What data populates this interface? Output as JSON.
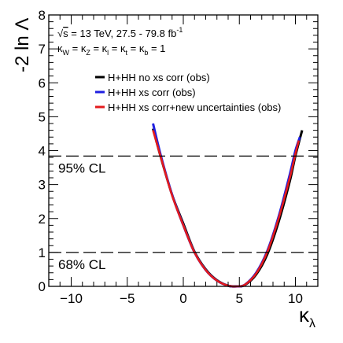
{
  "chart_data": {
    "type": "line",
    "xlabel": "κ",
    "xlabel_sub": "λ",
    "ylabel": "-2 ln Λ",
    "xlim": [
      -12,
      12
    ],
    "ylim": [
      0,
      8
    ],
    "x_ticks": [
      -10,
      -5,
      0,
      5,
      10
    ],
    "x_tick_labels": [
      "−10",
      "−5",
      "0",
      "5",
      "10"
    ],
    "y_ticks": [
      0,
      1,
      2,
      3,
      4,
      5,
      6,
      7,
      8
    ],
    "y_tick_labels": [
      "0",
      "1",
      "2",
      "3",
      "4",
      "5",
      "6",
      "7",
      "8"
    ],
    "energy_label": {
      "root": "s",
      "rest": " = 13 TeV, 27.5 - 79.8 fb",
      "exp": "-1"
    },
    "coupling_label": {
      "parts": [
        {
          "k": "κ",
          "s": "W"
        },
        {
          "k": "κ",
          "s": "Z"
        },
        {
          "k": "κ",
          "s": "l"
        },
        {
          "k": "κ",
          "s": "t"
        },
        {
          "k": "κ",
          "s": "b"
        }
      ],
      "value": "1"
    },
    "reference_lines": [
      {
        "y": 3.84,
        "label": "95% CL"
      },
      {
        "y": 1.0,
        "label": "68% CL"
      }
    ],
    "legend": {
      "placement": "top-right"
    },
    "series": [
      {
        "name": "H+HH no xs corr (obs)",
        "color": "#000000",
        "x": [
          -2.7,
          -2.0,
          -1.0,
          0.0,
          1.0,
          2.0,
          3.0,
          4.0,
          4.8,
          5.5,
          6.5,
          7.5,
          8.5,
          9.5,
          10.0,
          10.6
        ],
        "y": [
          4.65,
          3.8,
          2.7,
          1.85,
          1.02,
          0.5,
          0.18,
          0.02,
          0.0,
          0.04,
          0.35,
          0.95,
          1.9,
          3.1,
          3.85,
          4.6
        ]
      },
      {
        "name": "H+HH xs corr (obs)",
        "color": "#1f1fe0",
        "x": [
          -2.7,
          -2.0,
          -1.0,
          0.0,
          1.0,
          2.0,
          3.0,
          4.0,
          4.8,
          5.5,
          6.5,
          7.5,
          8.5,
          9.5,
          10.0,
          10.4
        ],
        "y": [
          4.8,
          3.85,
          2.7,
          1.8,
          1.0,
          0.48,
          0.17,
          0.02,
          0.0,
          0.05,
          0.4,
          1.05,
          2.05,
          3.3,
          4.0,
          4.4
        ]
      },
      {
        "name": "H+HH xs corr+new uncertainties (obs)",
        "color": "#e41a1c",
        "x": [
          -2.7,
          -2.0,
          -1.0,
          0.0,
          1.0,
          2.0,
          3.0,
          4.0,
          4.8,
          5.5,
          6.5,
          7.5,
          8.5,
          9.5,
          10.0,
          10.3
        ],
        "y": [
          4.6,
          3.8,
          2.68,
          1.8,
          1.0,
          0.48,
          0.17,
          0.02,
          0.0,
          0.05,
          0.38,
          1.02,
          2.0,
          3.2,
          3.9,
          4.3
        ]
      }
    ]
  }
}
